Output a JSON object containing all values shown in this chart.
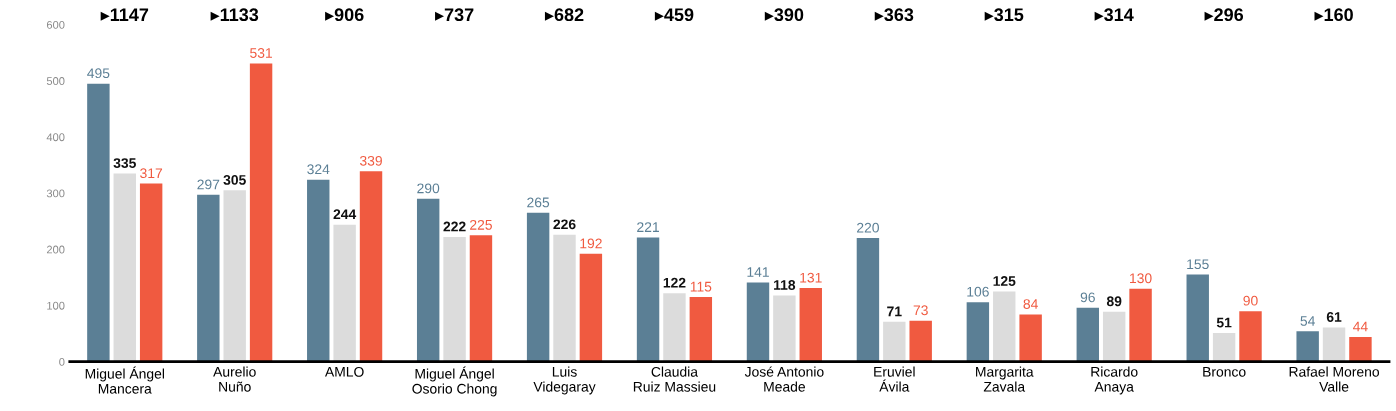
{
  "chart_data": {
    "type": "bar",
    "categories": [
      "Miguel Ángel\nMancera",
      "Aurelio\nNuño",
      "AMLO",
      "Miguel Ángel\nOsorio Chong",
      "Luis\nVidegaray",
      "Claudia\nRuiz Massieu",
      "José Antonio\nMeade",
      "Eruviel\nÁvila",
      "Margarita\nZavala",
      "Ricardo\nAnaya",
      "Bronco",
      "Rafael Moreno\nValle"
    ],
    "series": [
      {
        "color": "#5b7f95",
        "values": [
          495,
          297,
          324,
          290,
          265,
          221,
          141,
          220,
          106,
          96,
          155,
          54
        ]
      },
      {
        "color": "#dcdcdc",
        "values": [
          335,
          305,
          244,
          222,
          226,
          122,
          118,
          71,
          125,
          89,
          51,
          61
        ]
      },
      {
        "color": "#f05a40",
        "values": [
          317,
          531,
          339,
          225,
          192,
          115,
          131,
          73,
          84,
          130,
          90,
          44
        ]
      }
    ],
    "annotations": [
      "▸1147",
      "▸1133",
      "▸906",
      "▸737",
      "▸682",
      "▸459",
      "▸390",
      "▸363",
      "▸315",
      "▸314",
      "▸296",
      "▸160"
    ],
    "ylim": [
      0,
      600
    ],
    "yticks": [
      0,
      100,
      200,
      300,
      400,
      500,
      600
    ],
    "data_labels": true,
    "grid": false,
    "legend": false
  }
}
